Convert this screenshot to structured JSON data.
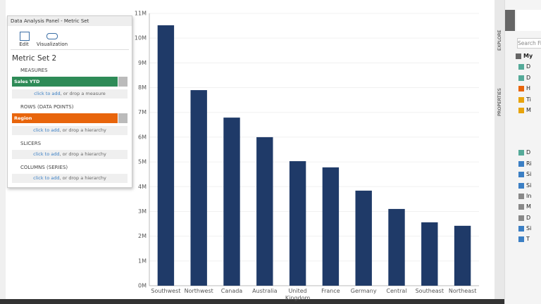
{
  "panel": {
    "title": "Data Analysis Panel - Metric Set",
    "toolbar": [
      "Edit",
      "Visualization"
    ],
    "metric_set": "Metric Set 2",
    "sections": [
      {
        "heading": "MEASURES",
        "item": "Sales YTD",
        "link": "click to add",
        "hint": ", or drop a measure"
      },
      {
        "heading": "ROWS (DATA POINTS)",
        "item": "Region",
        "link": "click to add",
        "hint": ", or drop a hierarchy"
      },
      {
        "heading": "SLICERS",
        "link": "click to add",
        "hint": ", or drop a hierarchy"
      },
      {
        "heading": "COLUMNS (SERIES)",
        "link": "click to add",
        "hint": ", or drop a hierarchy"
      }
    ]
  },
  "side_tabs": [
    "EXPLORE",
    "PROPERTIES"
  ],
  "explorer": {
    "search": "Search File",
    "items": [
      "My",
      "D",
      "D",
      "H",
      "Ti",
      "M",
      "D",
      "Ri",
      "Si",
      "Si",
      "In",
      "M",
      "D",
      "Si",
      "T"
    ]
  },
  "chart_data": {
    "type": "bar",
    "categories": [
      "Southwest",
      "Northwest",
      "Canada",
      "Australia",
      "United Kingdom",
      "France",
      "Germany",
      "Central",
      "Southeast",
      "Northeast"
    ],
    "values": [
      10520000,
      7900000,
      6790000,
      6000000,
      5030000,
      4780000,
      3840000,
      3100000,
      2560000,
      2420000
    ],
    "color": "#1f3a68",
    "ylim": [
      0,
      11000000
    ],
    "yticks": [
      {
        "value": 0,
        "label": "0M"
      },
      {
        "value": 1000000,
        "label": "1M"
      },
      {
        "value": 2000000,
        "label": "2M"
      },
      {
        "value": 3000000,
        "label": "3M"
      },
      {
        "value": 4000000,
        "label": "4M"
      },
      {
        "value": 5000000,
        "label": "5M"
      },
      {
        "value": 6000000,
        "label": "6M"
      },
      {
        "value": 7000000,
        "label": "7M"
      },
      {
        "value": 8000000,
        "label": "8M"
      },
      {
        "value": 9000000,
        "label": "9M"
      },
      {
        "value": 10000000,
        "label": "10M"
      },
      {
        "value": 11000000,
        "label": "11M"
      }
    ],
    "grid": true
  }
}
